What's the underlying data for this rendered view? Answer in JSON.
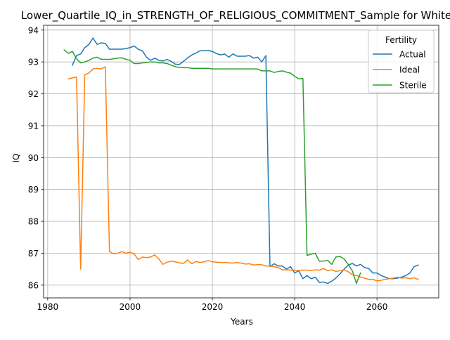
{
  "chart_data": {
    "type": "line",
    "title": "Lower_Quartile_IQ_in_STRENGTH_OF_RELIGIOUS_COMMITMENT_Sample for White",
    "xlabel": "Years",
    "ylabel": "IQ",
    "xlim": [
      1979,
      2075
    ],
    "ylim": [
      85.6,
      94.15
    ],
    "xticks": [
      1980,
      2000,
      2020,
      2040,
      2060
    ],
    "yticks": [
      86,
      87,
      88,
      89,
      90,
      91,
      92,
      93,
      94
    ],
    "grid": true,
    "legend": {
      "title": "Fertility",
      "position": "top-right"
    },
    "series": [
      {
        "name": "Actual",
        "color": "#1f77b4",
        "x": [
          1986,
          1987,
          1988,
          1989,
          1990,
          1991,
          1992,
          1993,
          1994,
          1995,
          1996,
          1997,
          1998,
          1999,
          2000,
          2001,
          2002,
          2003,
          2004,
          2005,
          2006,
          2007,
          2008,
          2009,
          2010,
          2011,
          2012,
          2013,
          2014,
          2015,
          2016,
          2017,
          2018,
          2019,
          2020,
          2021,
          2022,
          2023,
          2024,
          2025,
          2026,
          2027,
          2028,
          2029,
          2030,
          2031,
          2032,
          2033,
          2034,
          2035,
          2036,
          2037,
          2038,
          2039,
          2040,
          2041,
          2042,
          2043,
          2044,
          2045,
          2046,
          2047,
          2048,
          2049,
          2050,
          2051,
          2052,
          2053,
          2054,
          2055,
          2056,
          2057,
          2058,
          2059,
          2060,
          2061,
          2062,
          2063,
          2064,
          2065,
          2066,
          2067,
          2068,
          2069,
          2070
        ],
        "y": [
          92.9,
          93.2,
          93.25,
          93.45,
          93.55,
          93.75,
          93.55,
          93.6,
          93.58,
          93.4,
          93.4,
          93.4,
          93.4,
          93.42,
          93.45,
          93.5,
          93.4,
          93.35,
          93.15,
          93.05,
          93.12,
          93.05,
          93.03,
          93.08,
          93.02,
          92.93,
          92.92,
          93.02,
          93.13,
          93.22,
          93.28,
          93.35,
          93.35,
          93.36,
          93.33,
          93.26,
          93.22,
          93.25,
          93.15,
          93.25,
          93.18,
          93.18,
          93.18,
          93.2,
          93.12,
          93.15,
          93.0,
          93.2,
          86.58,
          86.67,
          86.6,
          86.6,
          86.5,
          86.58,
          86.38,
          86.45,
          86.2,
          86.3,
          86.2,
          86.25,
          86.08,
          86.1,
          86.05,
          86.12,
          86.22,
          86.35,
          86.5,
          86.62,
          86.68,
          86.6,
          86.65,
          86.55,
          86.52,
          86.38,
          86.38,
          86.3,
          86.25,
          86.2,
          86.2,
          86.22,
          86.25,
          86.3,
          86.38,
          86.58,
          86.63
        ]
      },
      {
        "name": "Ideal",
        "color": "#ff7f0e",
        "x": [
          1985,
          1986,
          1987,
          1988,
          1989,
          1990,
          1991,
          1992,
          1993,
          1994,
          1995,
          1996,
          1997,
          1998,
          1999,
          2000,
          2001,
          2002,
          2003,
          2004,
          2005,
          2006,
          2007,
          2008,
          2009,
          2010,
          2011,
          2012,
          2013,
          2014,
          2015,
          2016,
          2017,
          2018,
          2019,
          2020,
          2021,
          2022,
          2023,
          2024,
          2025,
          2026,
          2027,
          2028,
          2029,
          2030,
          2031,
          2032,
          2033,
          2034,
          2035,
          2036,
          2037,
          2038,
          2039,
          2040,
          2041,
          2042,
          2043,
          2044,
          2045,
          2046,
          2047,
          2048,
          2049,
          2050,
          2051,
          2052,
          2053,
          2054,
          2055,
          2056,
          2057,
          2058,
          2059,
          2060,
          2061,
          2062,
          2063,
          2064,
          2065,
          2066,
          2067,
          2068,
          2069,
          2070
        ],
        "y": [
          92.47,
          92.5,
          92.53,
          86.5,
          92.6,
          92.65,
          92.78,
          92.8,
          92.78,
          92.85,
          87.05,
          86.98,
          87.0,
          87.05,
          87.0,
          87.03,
          86.98,
          86.8,
          86.88,
          86.86,
          86.88,
          86.95,
          86.82,
          86.65,
          86.72,
          86.75,
          86.73,
          86.7,
          86.68,
          86.79,
          86.67,
          86.74,
          86.71,
          86.73,
          86.77,
          86.73,
          86.72,
          86.71,
          86.71,
          86.7,
          86.69,
          86.71,
          86.69,
          86.66,
          86.67,
          86.63,
          86.64,
          86.64,
          86.6,
          86.6,
          86.58,
          86.55,
          86.48,
          86.48,
          86.47,
          86.47,
          86.46,
          86.47,
          86.47,
          86.45,
          86.48,
          86.47,
          86.52,
          86.45,
          86.48,
          86.43,
          86.45,
          86.48,
          86.42,
          86.32,
          86.3,
          86.25,
          86.22,
          86.18,
          86.18,
          86.13,
          86.15,
          86.18,
          86.2,
          86.22,
          86.25,
          86.22,
          86.23,
          86.2,
          86.23,
          86.18
        ]
      },
      {
        "name": "Sterile",
        "color": "#2ca02c",
        "x": [
          1984,
          1985,
          1986,
          1987,
          1988,
          1989,
          1990,
          1991,
          1992,
          1993,
          1994,
          1995,
          1996,
          1997,
          1998,
          1999,
          2000,
          2001,
          2002,
          2003,
          2004,
          2005,
          2006,
          2007,
          2008,
          2009,
          2010,
          2011,
          2012,
          2013,
          2014,
          2015,
          2016,
          2017,
          2018,
          2019,
          2020,
          2021,
          2022,
          2023,
          2024,
          2025,
          2026,
          2027,
          2028,
          2029,
          2030,
          2031,
          2032,
          2033,
          2034,
          2035,
          2036,
          2037,
          2038,
          2039,
          2040,
          2041,
          2042,
          2043,
          2044,
          2045,
          2046,
          2047,
          2048,
          2049,
          2050,
          2051,
          2052,
          2053,
          2054,
          2055,
          2056
        ],
        "y": [
          93.38,
          93.27,
          93.33,
          93.1,
          92.97,
          93.0,
          93.05,
          93.12,
          93.15,
          93.08,
          93.08,
          93.08,
          93.1,
          93.12,
          93.13,
          93.08,
          93.05,
          92.95,
          92.95,
          92.97,
          92.98,
          93.0,
          93.0,
          92.97,
          92.97,
          92.95,
          92.9,
          92.85,
          92.83,
          92.82,
          92.82,
          92.8,
          92.8,
          92.8,
          92.8,
          92.8,
          92.78,
          92.78,
          92.78,
          92.78,
          92.78,
          92.78,
          92.78,
          92.78,
          92.78,
          92.78,
          92.78,
          92.78,
          92.72,
          92.72,
          92.72,
          92.67,
          92.7,
          92.72,
          92.68,
          92.65,
          92.55,
          92.47,
          92.48,
          86.93,
          86.97,
          87.0,
          86.75,
          86.75,
          86.78,
          86.65,
          86.88,
          86.9,
          86.82,
          86.65,
          86.45,
          86.05,
          86.38
        ]
      }
    ]
  }
}
